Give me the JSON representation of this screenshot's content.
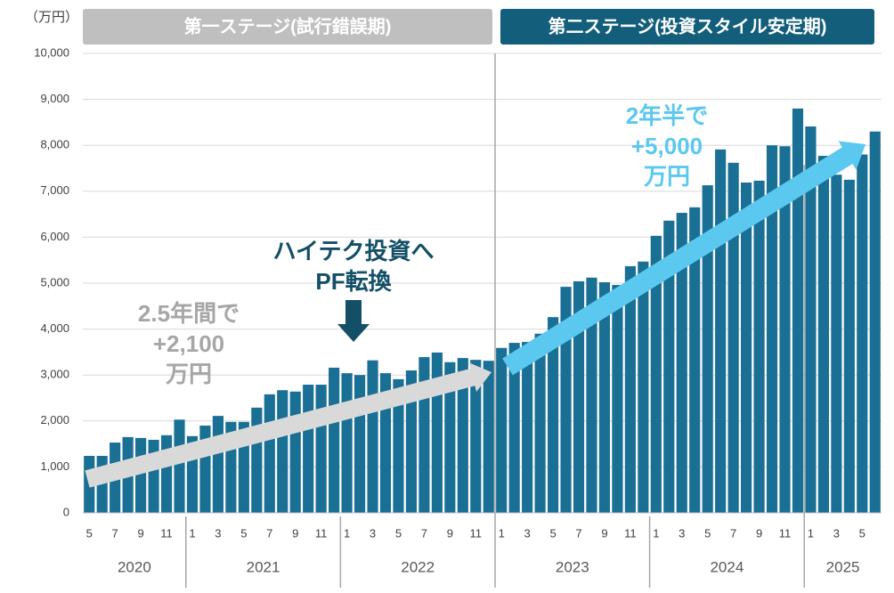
{
  "chart_data": {
    "type": "bar",
    "y_unit": "（万円）",
    "stages": [
      "第一ステージ(試行錯誤期)",
      "第二ステージ(投資スタイル安定期)"
    ],
    "annotations": [
      {
        "lines": [
          "2.5年間で",
          "+2,100",
          "万円"
        ],
        "color": "#a6a6a6"
      },
      {
        "lines": [
          "ハイテク投資へ",
          "PF転換"
        ],
        "color": "#134f66"
      },
      {
        "lines": [
          "2年半で",
          "+5,000",
          "万円"
        ],
        "color": "#5bc8f0"
      }
    ],
    "years": [
      "2020",
      "2021",
      "2022",
      "2023",
      "2024",
      "2025"
    ],
    "categories": [
      "5",
      null,
      "7",
      null,
      "9",
      null,
      "11",
      null,
      "1",
      null,
      "3",
      null,
      "5",
      null,
      "7",
      null,
      "9",
      null,
      "11",
      null,
      "1",
      null,
      "3",
      null,
      "5",
      null,
      "7",
      null,
      "9",
      null,
      "11",
      null,
      "1",
      null,
      "3",
      null,
      "5",
      null,
      "7",
      null,
      "9",
      null,
      "11",
      null,
      "1",
      null,
      "3",
      null,
      "5",
      null,
      "7",
      null,
      "9",
      null,
      "11",
      null,
      "1",
      null,
      "3",
      null,
      "5",
      null
    ],
    "values": [
      1240,
      1240,
      1530,
      1650,
      1630,
      1590,
      1690,
      2030,
      1670,
      1900,
      2110,
      1980,
      1980,
      2290,
      2580,
      2670,
      2640,
      2790,
      2790,
      3160,
      3040,
      3000,
      3320,
      3040,
      2910,
      3100,
      3390,
      3490,
      3280,
      3370,
      3330,
      3310,
      3590,
      3700,
      3720,
      3900,
      4260,
      4920,
      5040,
      5120,
      5020,
      4960,
      5370,
      5470,
      6030,
      6360,
      6530,
      6650,
      7130,
      7910,
      7620,
      7190,
      7230,
      8000,
      7980,
      8800,
      8410,
      7770,
      7360,
      7250,
      7800,
      8300
    ],
    "color": "#1a6f94",
    "ylim": [
      0,
      10000
    ],
    "yticks": [
      0,
      {
        "value": 1000,
        "label": "1,000"
      },
      {
        "value": 2000,
        "label": "2,000"
      },
      {
        "value": 3000,
        "label": "3,000"
      },
      {
        "value": 4000,
        "label": "4,000"
      },
      {
        "value": 5000,
        "label": "5,000"
      },
      {
        "value": 6000,
        "label": "6,000"
      },
      {
        "value": 7000,
        "label": "7,000"
      },
      {
        "value": 8000,
        "label": "8,000"
      },
      {
        "value": 9000,
        "label": "9,000"
      },
      {
        "value": 10000,
        "label": "10,000"
      }
    ],
    "grid": true
  }
}
